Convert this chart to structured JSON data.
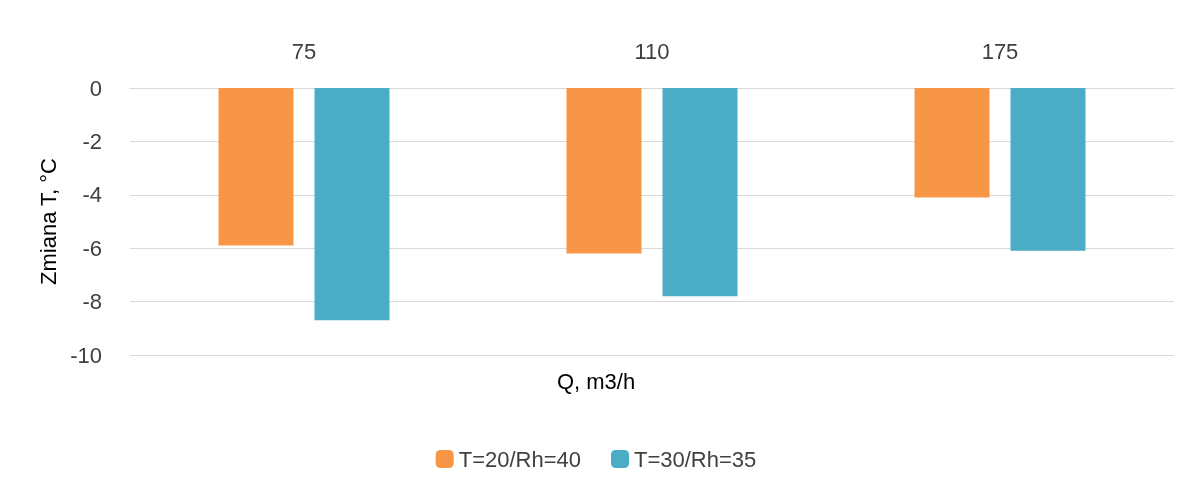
{
  "chart_data": {
    "type": "bar",
    "xlabel": "Q, m3/h",
    "ylabel": "Zmiana T, °C",
    "categories": [
      "75",
      "110",
      "175"
    ],
    "series": [
      {
        "name": "T=20/Rh=40",
        "color": "#f79646",
        "values": [
          -5.9,
          -6.2,
          -4.1
        ]
      },
      {
        "name": "T=30/Rh=35",
        "color": "#4bacc6",
        "values": [
          -8.7,
          -7.8,
          -6.1
        ]
      }
    ],
    "ylim": [
      -10,
      0
    ],
    "yticks": [
      -10,
      -8,
      -6,
      -4,
      -2,
      0
    ],
    "grid": "y",
    "legend": "bottom"
  }
}
